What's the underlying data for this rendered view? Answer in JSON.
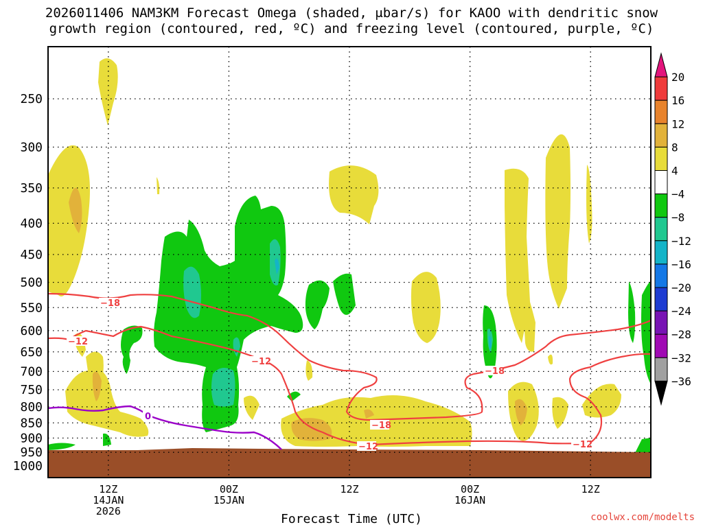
{
  "title": {
    "line1": "2026011406 NAM3KM Forecast Omega (shaded, μbar/s) for KAOO with dendritic snow",
    "line2": "growth region (contoured, red, ºC) and freezing level (contoured, purple, ºC)"
  },
  "credit": "coolwx.com/modelts",
  "chart_data": {
    "type": "heatmap",
    "title": "2026011406 NAM3KM Forecast Omega (shaded, μbar/s) for KAOO with dendritic snow growth region (contoured, red, ºC) and freezing level (contoured, purple, ºC)",
    "xlabel": "Forecast Time (UTC)",
    "ylabel": "",
    "x_range_hours_after_init": [
      0,
      60
    ],
    "y_range_hPa": [
      1000,
      200
    ],
    "y_scale": "log-pressure",
    "grid": true,
    "y_ticks": [
      250,
      300,
      350,
      400,
      450,
      500,
      550,
      600,
      650,
      700,
      750,
      800,
      850,
      900,
      950,
      1000
    ],
    "x_ticks": [
      {
        "hour": 6,
        "lines": [
          "12Z",
          "14JAN",
          "2026"
        ]
      },
      {
        "hour": 18,
        "lines": [
          "00Z",
          "15JAN"
        ]
      },
      {
        "hour": 30,
        "lines": [
          "12Z",
          ""
        ]
      },
      {
        "hour": 42,
        "lines": [
          "00Z",
          "16JAN"
        ]
      },
      {
        "hour": 54,
        "lines": [
          "12Z",
          ""
        ]
      }
    ],
    "colorbar": {
      "labels": [
        "20",
        "16",
        "12",
        "8",
        "4",
        "−4",
        "−8",
        "−12",
        "−16",
        "−20",
        "−24",
        "−28",
        "−32",
        "−36"
      ],
      "colors": [
        "#e3147c",
        "#ef3b3b",
        "#e8832c",
        "#e2b23a",
        "#e8dc3a",
        "#ffffff",
        "#10c810",
        "#20c890",
        "#14b4c8",
        "#1478e6",
        "#1e3cd2",
        "#7814b4",
        "#a00ab4",
        "#a0a0a0",
        "#000000"
      ]
    },
    "contour_labels": {
      "dgz": [
        "−18",
        "−12",
        "−12",
        "−18",
        "−12",
        "−18",
        "−12"
      ],
      "freezing": [
        "0"
      ]
    },
    "colors": {
      "dgz_contour": "#ef4040",
      "freezing_contour": "#9a00c8",
      "ground": "#9a4e28"
    }
  }
}
